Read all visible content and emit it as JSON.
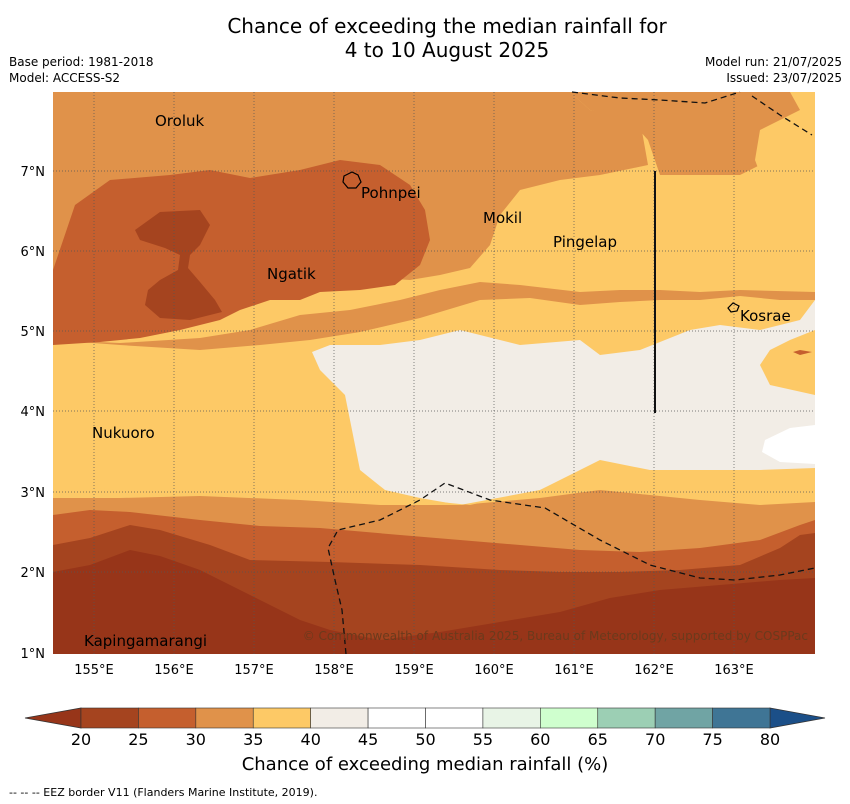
{
  "header": {
    "title_line1": "Chance of exceeding the median rainfall for",
    "title_line2": "4 to 10 August 2025",
    "base_period": "Base period: 1981-2018",
    "model": "Model: ACCESS-S2",
    "model_run": "Model run: 21/07/2025",
    "issued": "Issued: 23/07/2025"
  },
  "map": {
    "lon_labels": [
      "155°E",
      "156°E",
      "157°E",
      "158°E",
      "159°E",
      "160°E",
      "161°E",
      "162°E",
      "163°E"
    ],
    "lat_labels": [
      "1°N",
      "2°N",
      "3°N",
      "4°N",
      "5°N",
      "6°N",
      "7°N"
    ],
    "places": [
      "Oroluk",
      "Pohnpei",
      "Mokil",
      "Pingelap",
      "Ngatik",
      "Kosrae",
      "Nukuoro",
      "Kapingamarangi"
    ],
    "copyright": "© Commonwealth of Australia 2025, Bureau of Meteorology, supported by COSPPac"
  },
  "colorbar": {
    "ticks": [
      "20",
      "25",
      "30",
      "35",
      "40",
      "45",
      "50",
      "55",
      "60",
      "65",
      "70",
      "75",
      "80"
    ],
    "colors": [
      "#a5441f",
      "#c55f2e",
      "#e0924a",
      "#fdc966",
      "#f2ede6",
      "#ffffff",
      "#ffffff",
      "#e8f4e6",
      "#cfffce",
      "#9ccfb4",
      "#70a4a4",
      "#3f7595"
    ],
    "under_color": "#973519",
    "over_color": "#1b4f88",
    "label": "Chance of exceeding median rainfall (%)"
  },
  "footnote": "-- -- -- EEZ border V11 (Flanders Marine Institute, 2019)."
}
